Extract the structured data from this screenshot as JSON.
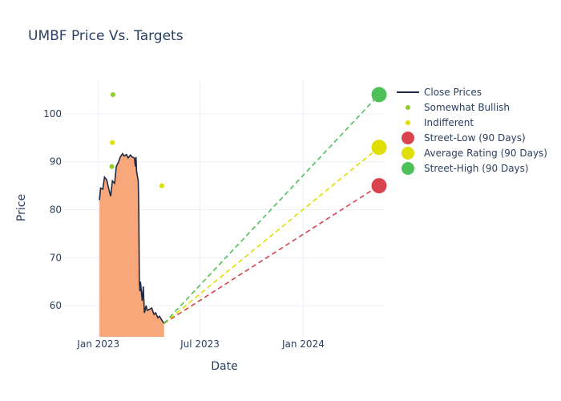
{
  "chart_data": {
    "type": "line",
    "title": "UMBF Price Vs. Targets",
    "xlabel": "Date",
    "ylabel": "Price",
    "x_ticks": [
      {
        "label": "Jan 2023",
        "date": "2023-01-01"
      },
      {
        "label": "Jul 2023",
        "date": "2023-07-01"
      },
      {
        "label": "Jan 2024",
        "date": "2024-01-01"
      }
    ],
    "y_ticks": [
      60,
      70,
      80,
      90,
      100
    ],
    "xlim": [
      "2022-11-01",
      "2024-05-25"
    ],
    "ylim": [
      53.5,
      107
    ],
    "grid": true,
    "legend_position": "right",
    "colors": {
      "close": "#1f2a44",
      "fill": "#f8a77a",
      "somewhat_bullish": "#8fce26",
      "indifferent": "#dede00",
      "street_low": "#d9434e",
      "average": "#dede00",
      "street_high": "#4ec05a"
    },
    "close_prices": {
      "name": "Close Prices",
      "dates": [
        "2023-01-03",
        "2023-01-05",
        "2023-01-09",
        "2023-01-12",
        "2023-01-16",
        "2023-01-19",
        "2023-01-23",
        "2023-01-26",
        "2023-01-30",
        "2023-02-02",
        "2023-02-06",
        "2023-02-09",
        "2023-02-13",
        "2023-02-16",
        "2023-02-20",
        "2023-02-23",
        "2023-02-27",
        "2023-03-02",
        "2023-03-06",
        "2023-03-08",
        "2023-03-09",
        "2023-03-10",
        "2023-03-13",
        "2023-03-14",
        "2023-03-15",
        "2023-03-16",
        "2023-03-17",
        "2023-03-20",
        "2023-03-22",
        "2023-03-24",
        "2023-03-27",
        "2023-03-29",
        "2023-04-03",
        "2023-04-06",
        "2023-04-10",
        "2023-04-13",
        "2023-04-17",
        "2023-04-20",
        "2023-04-24",
        "2023-04-28"
      ],
      "values": [
        82.0,
        84.5,
        84.3,
        86.8,
        86.2,
        84.6,
        82.8,
        86.0,
        85.5,
        89.0,
        90.0,
        91.0,
        91.7,
        91.2,
        91.5,
        90.8,
        91.4,
        91.0,
        90.8,
        89.0,
        91.0,
        88.0,
        86.0,
        80.0,
        65.0,
        63.0,
        65.0,
        61.0,
        64.0,
        58.5,
        60.0,
        59.0,
        59.3,
        59.5,
        58.2,
        58.5,
        57.5,
        57.8,
        57.0,
        56.3
      ]
    },
    "somewhat_bullish": {
      "name": "Somewhat Bullish",
      "points": [
        {
          "date": "2023-01-27",
          "value": 104
        },
        {
          "date": "2023-01-25",
          "value": 89
        }
      ]
    },
    "indifferent": {
      "name": "Indifferent",
      "points": [
        {
          "date": "2023-01-26",
          "value": 94
        },
        {
          "date": "2023-04-24",
          "value": 85
        }
      ]
    },
    "targets": {
      "start": {
        "date": "2023-04-28",
        "value": 56.3
      },
      "end_date": "2024-05-15",
      "street_low": {
        "name": "Street-Low (90 Days)",
        "value": 85
      },
      "average": {
        "name": "Average Rating (90 Days)",
        "value": 93
      },
      "street_high": {
        "name": "Street-High (90 Days)",
        "value": 104
      }
    },
    "legend": [
      "Close Prices",
      "Somewhat Bullish",
      "Indifferent",
      "Street-Low (90 Days)",
      "Average Rating (90 Days)",
      "Street-High (90 Days)"
    ]
  }
}
